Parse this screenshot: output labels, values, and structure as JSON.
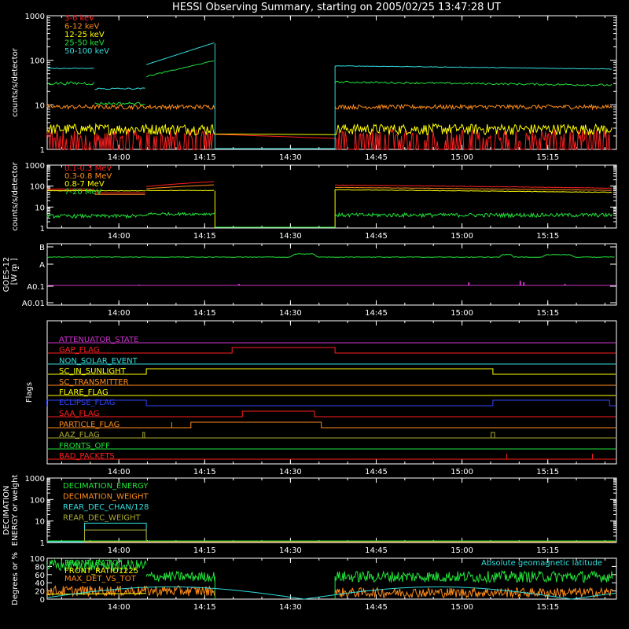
{
  "title": "HESSI Observing Summary, starting on 2005/02/25 13:47:28 UT",
  "time_ticks": [
    "14:00",
    "14:15",
    "14:30",
    "14:45",
    "15:00",
    "15:15"
  ],
  "colors": {
    "red": "#ff2020",
    "orange": "#ff8c1a",
    "yellow": "#ffff00",
    "green": "#22e33a",
    "cyan": "#33dddd",
    "magenta": "#cc33cc",
    "blue": "#3344ff",
    "olive": "#aaaa33",
    "white": "#ffffff"
  },
  "chart_data": [
    {
      "type": "line",
      "panel": "counts-low",
      "ylabel": "counts/s/detector",
      "yscale": "log",
      "ylim": [
        1,
        1000
      ],
      "yticks": [
        "1",
        "10",
        "100",
        "1000"
      ],
      "legend": [
        "3-6 keV",
        "6-12 keV",
        "12-25 keV",
        "25-50 keV",
        "50-100 keV"
      ],
      "series": [
        {
          "name": "3-6 keV",
          "color": "#ff2020",
          "segments": [
            [
              13.79,
              14.28,
              1.5
            ],
            [
              14.63,
              15.43,
              1.5
            ]
          ]
        },
        {
          "name": "6-12 keV",
          "color": "#ff8c1a",
          "segments": [
            [
              13.79,
              14.28,
              8.5
            ],
            [
              14.63,
              15.43,
              8.5
            ]
          ]
        },
        {
          "name": "12-25 keV",
          "color": "#ffff00",
          "segments": [
            [
              13.79,
              14.28,
              3
            ],
            [
              14.63,
              15.43,
              3
            ]
          ]
        },
        {
          "name": "25-50 keV",
          "color": "#22e33a",
          "segments": [
            [
              13.79,
              13.93,
              30
            ],
            [
              13.93,
              14.08,
              10
            ],
            [
              14.08,
              14.28,
              45
            ],
            [
              14.63,
              15.43,
              28
            ]
          ]
        },
        {
          "name": "50-100 keV",
          "color": "#33dddd",
          "segments": [
            [
              13.79,
              13.93,
              65
            ],
            [
              13.93,
              14.08,
              22
            ],
            [
              14.08,
              14.28,
              80
            ],
            [
              14.63,
              15.43,
              65
            ]
          ]
        }
      ]
    },
    {
      "type": "line",
      "panel": "counts-high",
      "ylabel": "counts/s/detector",
      "yscale": "log",
      "ylim": [
        1,
        1000
      ],
      "yticks": [
        "1",
        "10",
        "100",
        "1000"
      ],
      "legend": [
        "0.1-0.3 MeV",
        "0.3-0.8 MeV",
        "0.8-7 MeV",
        "7-20 MeV"
      ],
      "series": [
        {
          "name": "0.1-0.3 MeV",
          "color": "#ff2020",
          "segments": [
            [
              13.79,
              14.28,
              80
            ],
            [
              14.63,
              15.43,
              90
            ]
          ]
        },
        {
          "name": "0.3-0.8 MeV",
          "color": "#ff8c1a",
          "segments": [
            [
              13.79,
              14.28,
              70
            ],
            [
              14.63,
              15.43,
              75
            ]
          ]
        },
        {
          "name": "0.8-7 MeV",
          "color": "#ffff00",
          "segments": [
            [
              13.79,
              14.28,
              60
            ],
            [
              14.63,
              15.43,
              60
            ]
          ]
        },
        {
          "name": "7-20 MeV",
          "color": "#22e33a",
          "segments": [
            [
              13.79,
              14.28,
              4
            ],
            [
              14.63,
              15.43,
              4
            ]
          ]
        }
      ]
    },
    {
      "type": "line",
      "panel": "goes",
      "ylabel": "GOES-12 [W m-2]",
      "ylabel_lines": [
        "GOES-12",
        "[W m",
        "-2",
        "]"
      ],
      "yticks": [
        "B",
        "A",
        "A0.1",
        "A0.01"
      ],
      "series": [
        {
          "name": "GOES long",
          "color": "#22e33a",
          "value": "A-B"
        },
        {
          "name": "GOES short",
          "color": "#cc33cc",
          "value": "A0.1"
        }
      ]
    },
    {
      "type": "line",
      "panel": "flags",
      "ylabel": "Flags",
      "flags": [
        {
          "name": "ATTENUATOR_STATE",
          "color": "#cc33cc",
          "on": []
        },
        {
          "name": "GAP_FLAG",
          "color": "#ff2020",
          "on": [
            [
              14.33,
              14.63
            ]
          ]
        },
        {
          "name": "NON_SOLAR_EVENT",
          "color": "#33dddd",
          "on": []
        },
        {
          "name": "SC_IN_SUNLIGHT",
          "color": "#ffff00",
          "on": [
            [
              14.08,
              15.09
            ]
          ]
        },
        {
          "name": "SC_TRANSMITTER",
          "color": "#ff8c1a",
          "on": []
        },
        {
          "name": "FLARE_FLAG",
          "color": "#ffff00",
          "on": []
        },
        {
          "name": "ECLIPSE_FLAG",
          "color": "#3344ff",
          "on": [
            [
              13.79,
              14.08
            ],
            [
              15.09,
              15.43
            ]
          ]
        },
        {
          "name": "SAA_FLAG",
          "color": "#ff2020",
          "on": [
            [
              14.36,
              14.57
            ]
          ]
        },
        {
          "name": "PARTICLE_FLAG",
          "color": "#ff8c1a",
          "on": [
            [
              14.21,
              14.59
            ]
          ]
        },
        {
          "name": "AAZ_FLAG",
          "color": "#aaaa33",
          "on": []
        },
        {
          "name": "FRONTS_OFF",
          "color": "#22e33a",
          "on": []
        },
        {
          "name": "BAD_PACKETS",
          "color": "#ff2020",
          "on": []
        }
      ]
    },
    {
      "type": "line",
      "panel": "decimation",
      "ylabel": "DECIMATION ENERGY or weight",
      "ylabel_lines": [
        "DECIMATION",
        "ENERGY or weight"
      ],
      "yscale": "log",
      "ylim": [
        1,
        1000
      ],
      "yticks": [
        "1",
        "10",
        "100",
        "1000"
      ],
      "legend": [
        "DECIMATION_ENERGY",
        "DECIMATION_WEIGHT",
        "REAR_DEC_CHAN/128",
        "REAR_DEC_WEIGHT"
      ],
      "series": [
        {
          "name": "DECIMATION_ENERGY",
          "color": "#22e33a"
        },
        {
          "name": "DECIMATION_WEIGHT",
          "color": "#ff8c1a"
        },
        {
          "name": "REAR_DEC_CHAN/128",
          "color": "#33dddd"
        },
        {
          "name": "REAR_DEC_WEIGHT",
          "color": "#aaaa33"
        }
      ]
    },
    {
      "type": "line",
      "panel": "ratios",
      "ylabel": "Degrees or %",
      "ylim": [
        0,
        100
      ],
      "yticks": [
        "0",
        "20",
        "40",
        "60",
        "80",
        "100"
      ],
      "legend": [
        "FRONT_RATIO",
        "FRONT_RATIO1225",
        "MAX_DET_VS_TOT"
      ],
      "annotation": "Absolute geomagnetic latitude",
      "series": [
        {
          "name": "FRONT_RATIO",
          "color": "#22e33a",
          "segments": [
            [
              13.79,
              14.08,
              62
            ],
            [
              14.08,
              14.28,
              55
            ],
            [
              14.63,
              15.43,
              55
            ]
          ]
        },
        {
          "name": "FRONT_RATIO1225",
          "color": "#ffff00"
        },
        {
          "name": "MAX_DET_VS_TOT",
          "color": "#ff8c1a",
          "segments": [
            [
              13.79,
              14.28,
              18
            ],
            [
              14.63,
              15.43,
              15
            ]
          ]
        },
        {
          "name": "Absolute geomagnetic latitude",
          "color": "#33dddd"
        }
      ]
    }
  ]
}
